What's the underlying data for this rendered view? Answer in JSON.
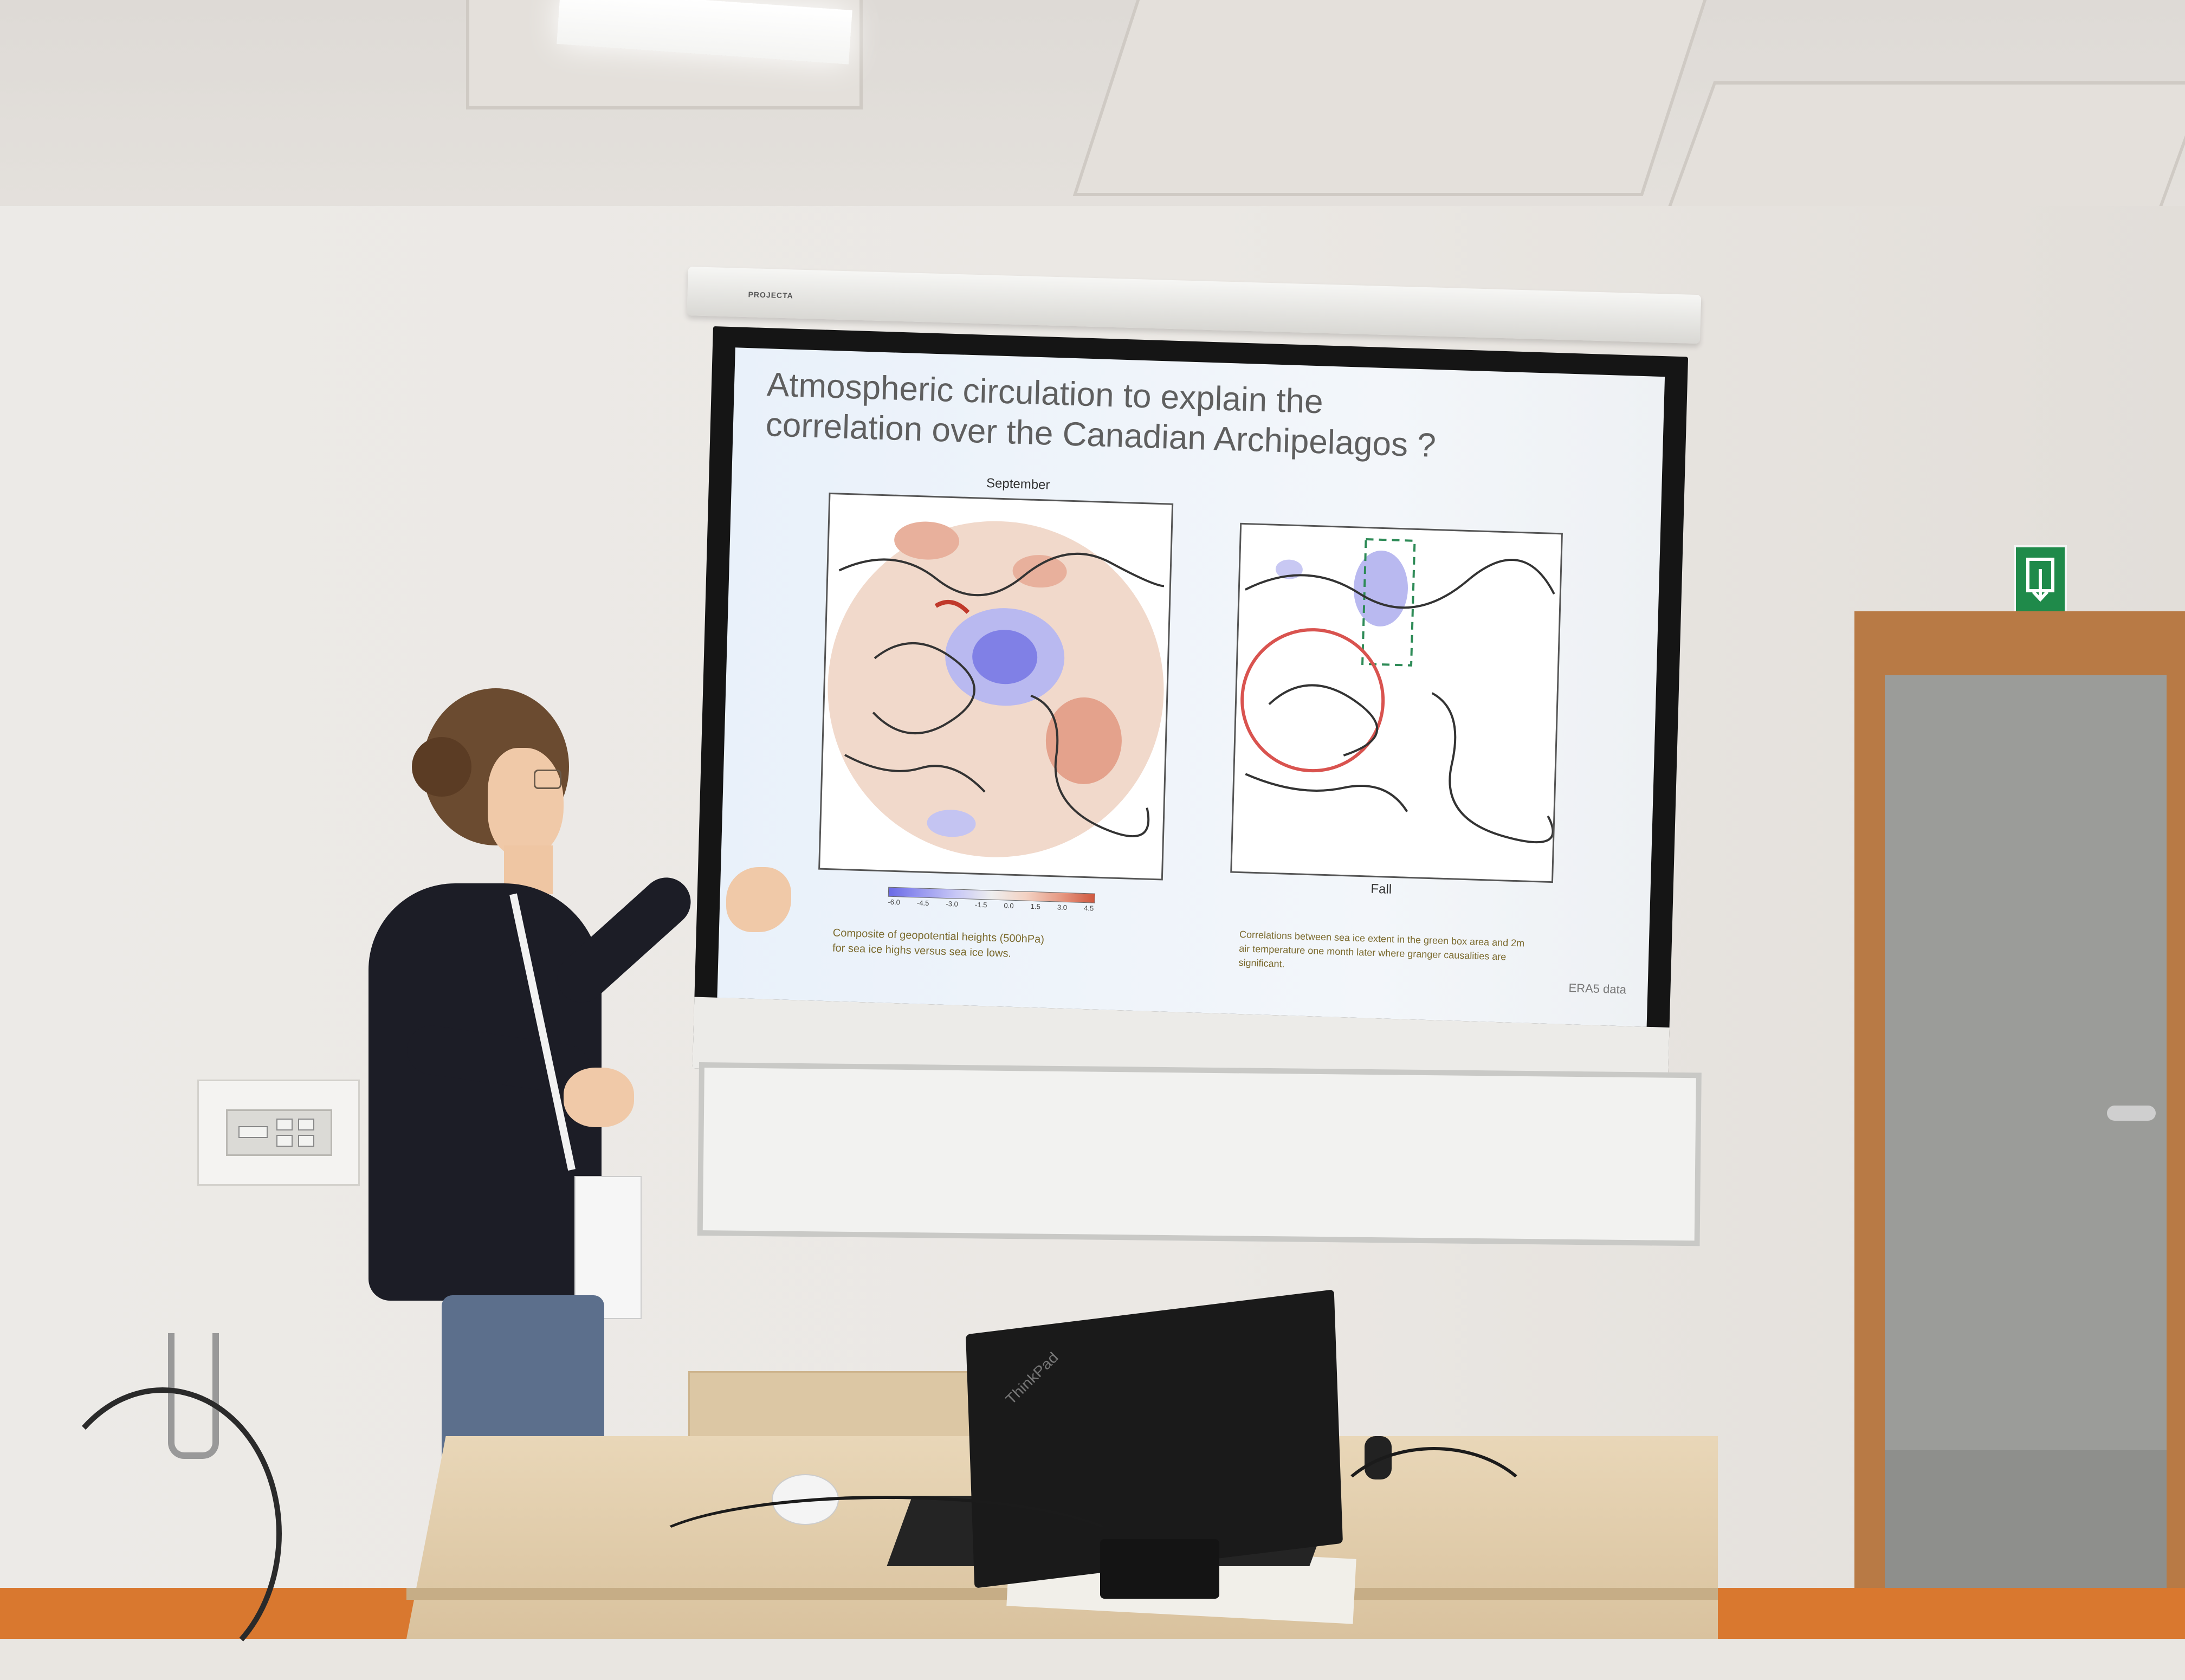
{
  "slide": {
    "title_line1": "Atmospheric circulation to explain the",
    "title_line2": "correlation over the Canadian Archipelagos ?",
    "left_map_label": "September",
    "right_map_label": "Fall",
    "colorbar_ticks": [
      "-6.0",
      "-4.5",
      "-3.0",
      "-1.5",
      "0.0",
      "1.5",
      "3.0",
      "4.5"
    ],
    "left_caption_line1": "Composite of geopotential heights (500hPa)",
    "left_caption_line2": "for sea ice highs versus sea ice lows.",
    "right_caption_line1": "Correlations between sea ice extent in the green box area and 2m",
    "right_caption_line2": "air temperature one month later where granger causalities are",
    "right_caption_line3": "significant.",
    "source": "ERA5 data"
  },
  "room": {
    "projector_brand": "PROJECTA",
    "laptop_brand": "ThinkPad"
  },
  "colors": {
    "slide_bg": "#eef3f9",
    "title_text": "#5f5f5f",
    "caption_text": "#7b6a2e",
    "anomaly_negative": "#7a7ae8",
    "anomaly_positive": "#d9735a",
    "exit_sign": "#1f8a4a",
    "door_frame": "#b87a45"
  }
}
